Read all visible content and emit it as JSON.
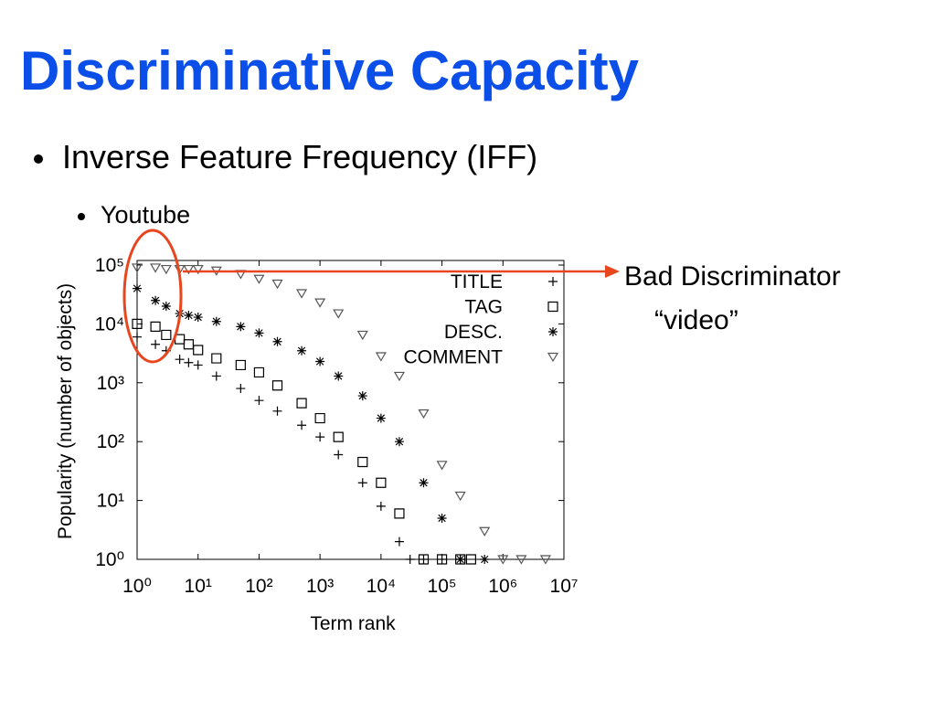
{
  "title": "Discriminative Capacity",
  "bullets": [
    "Inverse Feature Frequency (IFF)",
    "Youtube"
  ],
  "annotation": [
    "Bad Discriminator",
    "“video”"
  ],
  "chart_data": {
    "type": "scatter",
    "x_label": "Term rank",
    "y_label": "Popularity (number of objects)",
    "log_x": true,
    "log_y": true,
    "grid": false,
    "legend_position": "upper-right",
    "xlim": [
      1,
      10000000
    ],
    "ylim": [
      1,
      100000
    ],
    "xticks": [
      {
        "value": 1,
        "label": "10⁰"
      },
      {
        "value": 10,
        "label": "10¹"
      },
      {
        "value": 100,
        "label": "10²"
      },
      {
        "value": 1000,
        "label": "10³"
      },
      {
        "value": 10000,
        "label": "10⁴"
      },
      {
        "value": 100000,
        "label": "10⁵"
      },
      {
        "value": 1000000,
        "label": "10⁶"
      },
      {
        "value": 10000000,
        "label": "10⁷"
      }
    ],
    "yticks": [
      {
        "value": 1,
        "label": "10⁰"
      },
      {
        "value": 10,
        "label": "10¹"
      },
      {
        "value": 100,
        "label": "10²"
      },
      {
        "value": 1000,
        "label": "10³"
      },
      {
        "value": 10000,
        "label": "10⁴"
      },
      {
        "value": 100000,
        "label": "10⁵"
      }
    ],
    "series": [
      {
        "name": "TITLE",
        "color": "#000000",
        "marker": "plus",
        "x": [
          1,
          2,
          3,
          5,
          7,
          10,
          20,
          50,
          100,
          200,
          500,
          1000,
          2000,
          5000,
          10000,
          20000,
          30000,
          50000,
          100000,
          200000
        ],
        "values": [
          6000,
          4500,
          3500,
          2500,
          2200,
          2000,
          1300,
          800,
          500,
          330,
          190,
          120,
          60,
          20,
          8,
          2,
          1,
          1,
          1,
          1
        ]
      },
      {
        "name": "TAG",
        "color": "#000000",
        "marker": "square",
        "x": [
          1,
          2,
          3,
          5,
          7,
          10,
          20,
          50,
          100,
          200,
          500,
          1000,
          2000,
          5000,
          10000,
          20000,
          50000,
          100000,
          200000,
          300000
        ],
        "values": [
          10000,
          9000,
          6500,
          5500,
          4500,
          3600,
          2600,
          2000,
          1500,
          900,
          450,
          250,
          120,
          45,
          20,
          6,
          1,
          1,
          1,
          1
        ]
      },
      {
        "name": "DESC.",
        "color": "#000000",
        "marker": "asterisk",
        "x": [
          1,
          2,
          3,
          5,
          7,
          10,
          20,
          50,
          100,
          200,
          500,
          1000,
          2000,
          5000,
          10000,
          20000,
          50000,
          100000,
          200000,
          500000
        ],
        "values": [
          40000,
          25000,
          20000,
          15000,
          14000,
          13000,
          11000,
          9000,
          7000,
          5000,
          3500,
          2300,
          1300,
          600,
          250,
          100,
          20,
          5,
          1,
          1
        ]
      },
      {
        "name": "COMMENT",
        "color": "#555555",
        "marker": "triangle-down",
        "x": [
          1,
          2,
          3,
          5,
          7,
          10,
          20,
          50,
          100,
          200,
          500,
          1000,
          2000,
          5000,
          10000,
          20000,
          50000,
          100000,
          200000,
          500000,
          1000000,
          2000000,
          5000000
        ],
        "values": [
          90000,
          90000,
          85000,
          85000,
          85000,
          85000,
          80000,
          70000,
          58000,
          48000,
          33000,
          23000,
          15000,
          6500,
          2800,
          1300,
          300,
          40,
          12,
          3,
          1,
          1,
          1
        ]
      }
    ]
  }
}
